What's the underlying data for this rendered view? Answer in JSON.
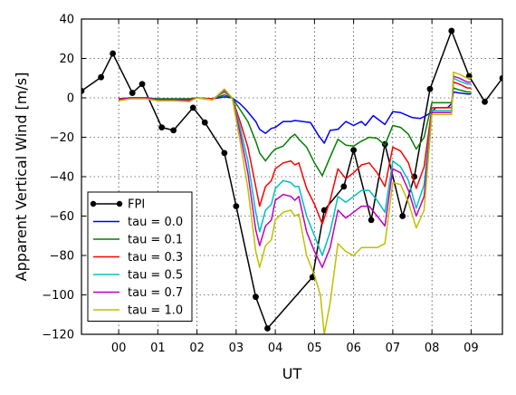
{
  "chart_data": {
    "type": "line",
    "xlabel": "UT",
    "ylabel": "Apparent Vertical Wind [m/s]",
    "xlim": [
      -0.95,
      9.8
    ],
    "ylim": [
      -120,
      40
    ],
    "grid": true,
    "legend_position": "lower-left",
    "xtick_values": [
      0,
      1,
      2,
      3,
      4,
      5,
      6,
      7,
      8,
      9
    ],
    "xtick_labels": [
      "00",
      "01",
      "02",
      "03",
      "04",
      "05",
      "06",
      "07",
      "08",
      "09"
    ],
    "ytick_values": [
      -120,
      -100,
      -80,
      -60,
      -40,
      -20,
      0,
      20,
      40
    ],
    "ytick_labels": [
      "−120",
      "−100",
      "−80",
      "−60",
      "−40",
      "−20",
      "0",
      "20",
      "40"
    ],
    "series": [
      {
        "name": "FPI",
        "color": "#000000",
        "markers": true,
        "x": [
          -0.95,
          -0.45,
          -0.15,
          0.35,
          0.6,
          1.1,
          1.4,
          1.9,
          2.2,
          2.7,
          3.0,
          3.5,
          3.8,
          4.95,
          5.25,
          5.75,
          6.0,
          6.45,
          6.8,
          7.25,
          7.55,
          7.95,
          8.5,
          8.95,
          9.35,
          9.8
        ],
        "y": [
          3.5,
          10.5,
          22.5,
          2.5,
          7,
          -15,
          -16.5,
          -5,
          -12.5,
          -28,
          -55,
          -101,
          -117,
          -91,
          -57,
          -45,
          -26.5,
          -62,
          -23.5,
          -60,
          -40,
          4.5,
          34,
          11,
          -2,
          10
        ]
      },
      {
        "name": "tau = 0.0",
        "color": "#0000ff",
        "markers": false,
        "x": [
          0.0,
          0.3,
          0.7,
          1.0,
          1.4,
          1.8,
          2.0,
          2.4,
          2.7,
          2.9,
          3.1,
          3.25,
          3.5,
          3.6,
          3.75,
          3.9,
          4.0,
          4.2,
          4.4,
          4.5,
          4.7,
          4.9,
          5.1,
          5.25,
          5.4,
          5.6,
          5.8,
          6.0,
          6.2,
          6.3,
          6.5,
          6.8,
          7.0,
          7.2,
          7.5,
          7.7,
          7.85,
          8.0,
          8.1,
          8.2,
          8.4,
          8.5,
          8.55,
          8.7,
          8.9,
          9.0
        ],
        "y": [
          -0.5,
          0,
          0,
          -0.5,
          -0.5,
          -0.5,
          0,
          -0.5,
          0.5,
          0,
          -3,
          -6,
          -12,
          -16,
          -18,
          -15.5,
          -15,
          -12,
          -12,
          -11.5,
          -12,
          -12.5,
          -19,
          -23,
          -16.5,
          -16,
          -12,
          -14,
          -12,
          -14,
          -9,
          -13.5,
          -7,
          -7.5,
          -10,
          -10.5,
          -9,
          -7,
          -5,
          -5,
          -5,
          -3,
          3,
          2.5,
          2,
          2
        ]
      },
      {
        "name": "tau = 0.1",
        "color": "#008000",
        "markers": false,
        "x": [
          0.0,
          0.3,
          0.7,
          1.0,
          1.4,
          1.8,
          2.0,
          2.4,
          2.7,
          2.9,
          3.1,
          3.3,
          3.5,
          3.6,
          3.75,
          3.9,
          4.0,
          4.2,
          4.4,
          4.5,
          4.6,
          4.8,
          5.0,
          5.2,
          5.4,
          5.6,
          5.8,
          6.0,
          6.2,
          6.4,
          6.6,
          6.8,
          7.0,
          7.2,
          7.4,
          7.6,
          7.8,
          8.0,
          8.1,
          8.2,
          8.4,
          8.5,
          8.55,
          8.7,
          8.9,
          9.0
        ],
        "y": [
          -0.5,
          0,
          0,
          -0.5,
          -0.5,
          -0.5,
          0,
          -0.5,
          1.5,
          0,
          -6,
          -12,
          -22,
          -28,
          -32,
          -28,
          -26,
          -24.5,
          -20,
          -18.5,
          -21,
          -25,
          -33,
          -39.5,
          -30,
          -21,
          -24,
          -24.5,
          -22,
          -20,
          -20.5,
          -24,
          -14,
          -15,
          -18.5,
          -26,
          -20,
          -2.5,
          -2.5,
          -2.5,
          -2.5,
          -2.5,
          5,
          4,
          3,
          3
        ]
      },
      {
        "name": "tau = 0.3",
        "color": "#ff0000",
        "markers": false,
        "x": [
          0.0,
          0.3,
          0.7,
          1.0,
          1.4,
          1.8,
          2.0,
          2.4,
          2.7,
          2.9,
          3.1,
          3.3,
          3.5,
          3.6,
          3.75,
          3.9,
          4.0,
          4.2,
          4.4,
          4.5,
          4.6,
          4.8,
          5.0,
          5.2,
          5.4,
          5.6,
          5.8,
          6.0,
          6.2,
          6.4,
          6.6,
          6.8,
          7.0,
          7.2,
          7.4,
          7.6,
          7.8,
          8.0,
          8.1,
          8.2,
          8.4,
          8.5,
          8.55,
          8.7,
          8.9,
          9.0
        ],
        "y": [
          -0.5,
          0,
          0,
          -1,
          -1,
          -1,
          0,
          -0.5,
          3,
          0,
          -12,
          -25,
          -45,
          -55,
          -45,
          -42,
          -36,
          -33,
          -32,
          -34,
          -33,
          -46,
          -54,
          -64,
          -52,
          -36,
          -41,
          -38,
          -34,
          -33,
          -38,
          -45,
          -25,
          -27,
          -33,
          -46,
          -35,
          -5,
          -5,
          -5,
          -5,
          -5,
          8,
          7,
          5,
          5
        ]
      },
      {
        "name": "tau = 0.5",
        "color": "#00bfbf",
        "markers": false,
        "x": [
          0.0,
          0.3,
          0.7,
          1.0,
          1.4,
          1.8,
          2.0,
          2.4,
          2.7,
          2.9,
          3.1,
          3.3,
          3.5,
          3.6,
          3.75,
          3.9,
          4.0,
          4.2,
          4.4,
          4.5,
          4.6,
          4.8,
          5.0,
          5.2,
          5.4,
          5.6,
          5.8,
          6.0,
          6.2,
          6.4,
          6.6,
          6.8,
          7.0,
          7.2,
          7.4,
          7.6,
          7.8,
          8.0,
          8.1,
          8.2,
          8.4,
          8.5,
          8.55,
          8.7,
          8.9,
          9.0
        ],
        "y": [
          -1,
          0,
          0,
          -1,
          -1,
          -1.5,
          0,
          -1,
          3.5,
          0,
          -15,
          -32,
          -58,
          -68,
          -57,
          -54,
          -46,
          -42,
          -43,
          -45,
          -45,
          -60,
          -70,
          -80,
          -68,
          -50,
          -53,
          -50,
          -47,
          -47,
          -52,
          -58,
          -32,
          -35,
          -42,
          -56,
          -44,
          -6.5,
          -6.5,
          -6.5,
          -6.5,
          -6.5,
          10,
          8.5,
          7,
          7
        ]
      },
      {
        "name": "tau = 0.7",
        "color": "#bf00bf",
        "markers": false,
        "x": [
          0.0,
          0.3,
          0.7,
          1.0,
          1.4,
          1.8,
          2.0,
          2.4,
          2.7,
          2.9,
          3.1,
          3.3,
          3.5,
          3.6,
          3.75,
          3.9,
          4.0,
          4.2,
          4.4,
          4.5,
          4.6,
          4.8,
          5.0,
          5.2,
          5.4,
          5.6,
          5.8,
          6.0,
          6.2,
          6.4,
          6.6,
          6.8,
          7.0,
          7.2,
          7.4,
          7.6,
          7.8,
          8.0,
          8.1,
          8.2,
          8.4,
          8.5,
          8.55,
          8.7,
          8.9,
          9.0
        ],
        "y": [
          -1,
          0,
          0,
          -1,
          -1,
          -1.5,
          0,
          -1,
          4,
          0,
          -18,
          -38,
          -67,
          -75,
          -65,
          -62,
          -52,
          -49,
          -50,
          -52,
          -50,
          -68,
          -78,
          -86,
          -76,
          -57,
          -61,
          -58,
          -55,
          -55,
          -60,
          -65,
          -36,
          -38,
          -47,
          -60,
          -50,
          -7.5,
          -7.5,
          -7.5,
          -7.5,
          -7.5,
          11,
          10,
          8,
          8
        ]
      },
      {
        "name": "tau = 1.0",
        "color": "#bfbf00",
        "markers": false,
        "x": [
          0.0,
          0.3,
          0.7,
          1.0,
          1.4,
          1.8,
          2.0,
          2.4,
          2.7,
          2.9,
          3.1,
          3.3,
          3.5,
          3.6,
          3.75,
          3.9,
          4.0,
          4.2,
          4.4,
          4.5,
          4.6,
          4.8,
          5.0,
          5.15,
          5.25,
          5.4,
          5.6,
          5.8,
          6.0,
          6.2,
          6.4,
          6.6,
          6.8,
          7.0,
          7.2,
          7.4,
          7.6,
          7.8,
          8.0,
          8.1,
          8.2,
          8.4,
          8.5,
          8.55,
          8.7,
          8.9,
          9.0
        ],
        "y": [
          -1.5,
          -0.5,
          -0.5,
          -1.5,
          -1.5,
          -2,
          0,
          -1,
          4.5,
          0,
          -22,
          -46,
          -78,
          -86,
          -75,
          -72,
          -62,
          -58,
          -57,
          -60,
          -59,
          -80,
          -90,
          -100,
          -120,
          -104,
          -74,
          -78,
          -80,
          -76,
          -76,
          -76,
          -74,
          -43,
          -44,
          -53,
          -66,
          -57,
          -8.5,
          -8.5,
          -8.5,
          -8.5,
          -8.5,
          13,
          12,
          10,
          10
        ]
      }
    ]
  }
}
